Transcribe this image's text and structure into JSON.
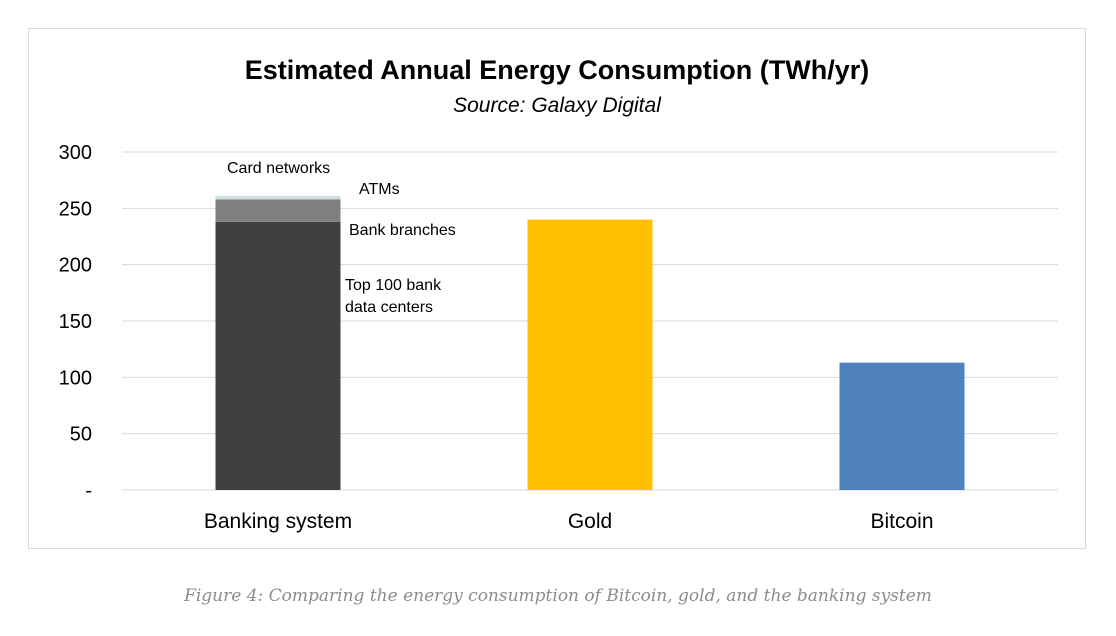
{
  "chart_data": {
    "type": "bar",
    "title": "Estimated Annual Energy Consumption (TWh/yr)",
    "subtitle": "Source: Galaxy Digital",
    "categories": [
      "Banking system",
      "Gold",
      "Bitcoin"
    ],
    "ylim": [
      0,
      300
    ],
    "yticks": [
      {
        "value": 0,
        "label": "-"
      },
      {
        "value": 50,
        "label": "50"
      },
      {
        "value": 100,
        "label": "100"
      },
      {
        "value": 150,
        "label": "150"
      },
      {
        "value": 200,
        "label": "200"
      },
      {
        "value": 250,
        "label": "250"
      },
      {
        "value": 300,
        "label": "300"
      }
    ],
    "grid": true,
    "stacked_segments": [
      {
        "name": "Top 100 bank data centers",
        "label_lines": [
          "Top 100 bank",
          "data centers"
        ],
        "category": "Banking system",
        "value": 238,
        "color": "#404040"
      },
      {
        "name": "Bank branches",
        "label_lines": [
          "Bank branches"
        ],
        "category": "Banking system",
        "value": 20,
        "color": "#7f7f7f"
      },
      {
        "name": "ATMs",
        "label_lines": [
          "ATMs"
        ],
        "category": "Banking system",
        "value": 2,
        "color": "#d9d9d9"
      },
      {
        "name": "Card networks",
        "label_lines": [
          "Card networks"
        ],
        "category": "Banking system",
        "value": 1,
        "color": "#bfe6ea"
      }
    ],
    "bars": [
      {
        "category": "Gold",
        "value": 240,
        "color": "#ffc000"
      },
      {
        "category": "Bitcoin",
        "value": 113,
        "color": "#4f81bd"
      }
    ]
  },
  "caption": "Figure 4: Comparing the energy consumption of Bitcoin, gold, and the banking system"
}
